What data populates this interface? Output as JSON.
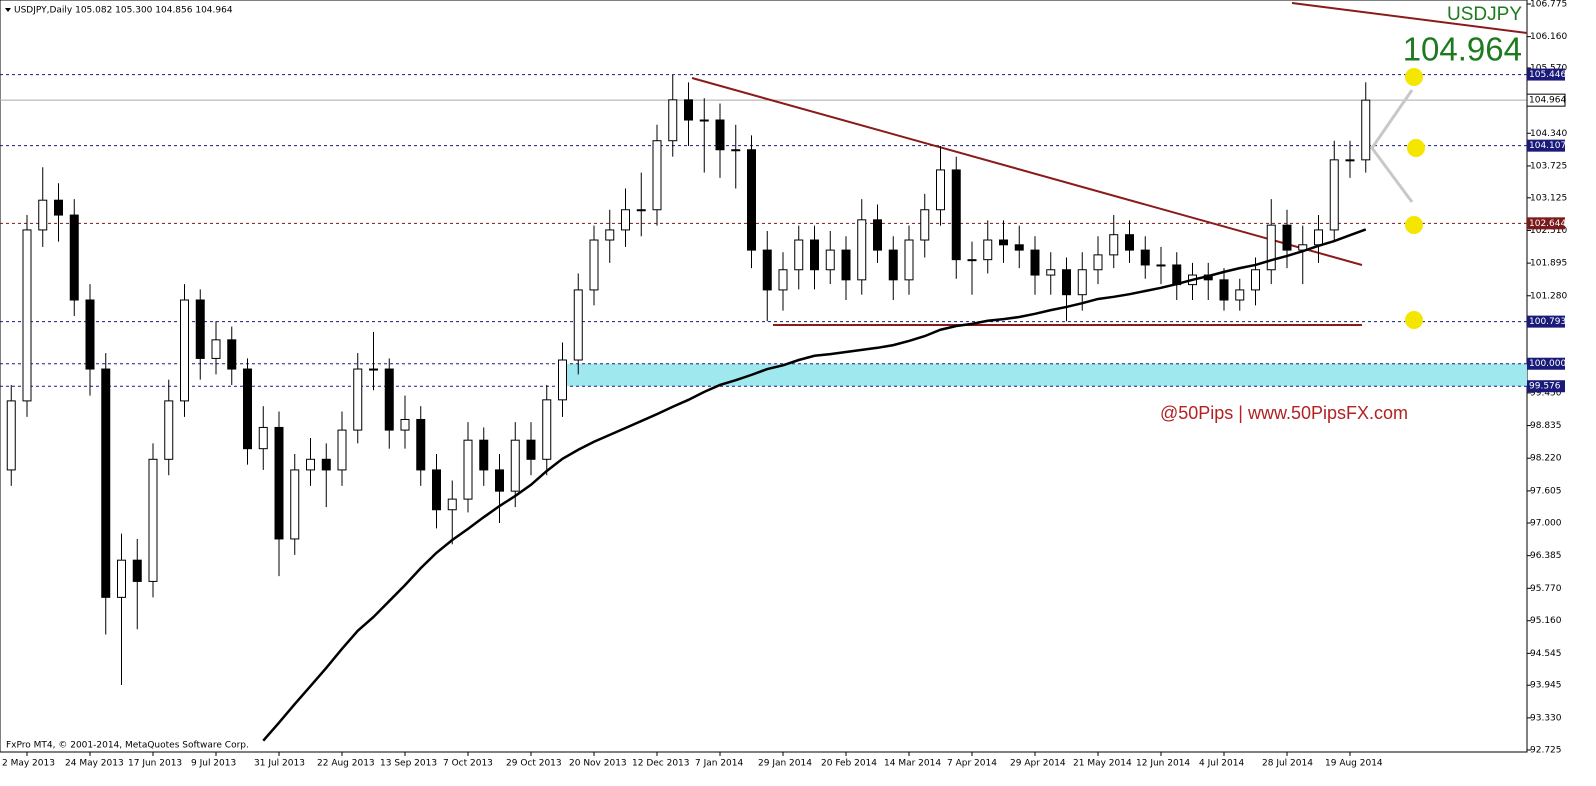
{
  "chart_data": {
    "type": "candlestick",
    "title": "USDJPY,Daily  105.082 105.300 104.856 104.964",
    "symbol": "USDJPY",
    "last_price": {
      "value": 104.964,
      "label": "104.964"
    },
    "watermark": "@50Pips | www.50PipsFX.com",
    "copyright": "FxPro MT4, © 2001-2014, MetaQuotes Software Corp.",
    "categories": [
      null,
      "2 May 2013",
      null,
      null,
      null,
      "24 May 2013",
      null,
      null,
      null,
      "17 Jun 2013",
      null,
      null,
      null,
      "9 Jul 2013",
      null,
      null,
      null,
      "31 Jul 2013",
      null,
      null,
      null,
      "22 Aug 2013",
      null,
      null,
      null,
      "13 Sep 2013",
      null,
      null,
      null,
      "7 Oct 2013",
      null,
      null,
      null,
      "29 Oct 2013",
      null,
      null,
      null,
      "20 Nov 2013",
      null,
      null,
      null,
      "12 Dec 2013",
      null,
      null,
      null,
      "7 Jan 2014",
      null,
      null,
      null,
      "29 Jan 2014",
      null,
      null,
      null,
      "20 Feb 2014",
      null,
      null,
      null,
      "14 Mar 2014",
      null,
      null,
      null,
      "7 Apr 2014",
      null,
      null,
      null,
      "29 Apr 2014",
      null,
      null,
      null,
      "21 May 2014",
      null,
      null,
      null,
      "12 Jun 2014",
      null,
      null,
      null,
      "4 Jul 2014",
      null,
      null,
      null,
      "28 Jul 2014",
      null,
      null,
      null,
      "19 Aug 2014",
      null
    ],
    "open": [
      98.0,
      99.3,
      102.52,
      103.08,
      102.8,
      101.2,
      99.9,
      95.6,
      96.3,
      95.9,
      98.2,
      99.3,
      101.2,
      100.1,
      100.45,
      99.9,
      98.4,
      98.8,
      96.7,
      98.0,
      98.2,
      98.0,
      98.75,
      99.9,
      99.9,
      98.75,
      98.95,
      98.0,
      97.25,
      97.45,
      98.56,
      98.0,
      97.6,
      98.56,
      98.2,
      99.32,
      100.07,
      101.39,
      102.33,
      102.52,
      102.9,
      102.9,
      104.2,
      104.97,
      104.59,
      104.59,
      104.03,
      104.03,
      102.14,
      101.39,
      101.77,
      102.33,
      101.77,
      102.14,
      101.58,
      102.71,
      102.14,
      101.58,
      102.33,
      102.9,
      103.65,
      101.96,
      101.96,
      102.33,
      102.24,
      102.14,
      101.67,
      101.77,
      101.3,
      101.77,
      102.05,
      102.43,
      102.14,
      101.86,
      101.86,
      101.49,
      101.67,
      101.58,
      101.2,
      101.39,
      101.77,
      102.61,
      102.14,
      102.24,
      102.52,
      103.84,
      103.84
    ],
    "high": [
      99.6,
      102.8,
      103.7,
      103.4,
      103.1,
      101.5,
      100.2,
      96.8,
      96.7,
      98.5,
      99.7,
      101.5,
      101.4,
      100.8,
      100.7,
      100.1,
      99.2,
      99.1,
      98.3,
      98.6,
      98.5,
      99.1,
      100.2,
      100.6,
      100.1,
      99.4,
      99.2,
      98.3,
      97.8,
      98.9,
      98.8,
      98.3,
      98.9,
      98.9,
      99.6,
      100.4,
      101.7,
      102.6,
      102.9,
      103.3,
      103.6,
      104.5,
      105.44,
      105.3,
      105.0,
      104.9,
      104.5,
      104.3,
      102.5,
      102.1,
      102.6,
      102.6,
      102.5,
      102.4,
      103.1,
      103.0,
      102.4,
      102.6,
      103.2,
      104.1,
      103.9,
      102.3,
      102.7,
      102.7,
      102.6,
      102.4,
      102.1,
      102.0,
      102.1,
      102.4,
      102.8,
      102.7,
      102.4,
      102.2,
      102.1,
      101.9,
      101.9,
      101.8,
      101.6,
      102.0,
      103.1,
      102.9,
      102.6,
      102.8,
      104.2,
      104.2,
      105.3
    ],
    "low": [
      97.7,
      99.0,
      102.2,
      102.3,
      100.9,
      99.4,
      94.9,
      93.95,
      95.0,
      95.6,
      97.9,
      99.0,
      99.7,
      99.8,
      99.6,
      98.1,
      98.0,
      96.0,
      96.4,
      97.7,
      97.3,
      97.7,
      98.5,
      99.5,
      98.4,
      98.4,
      97.7,
      96.9,
      96.6,
      97.2,
      97.7,
      97.0,
      97.3,
      97.9,
      97.9,
      99.0,
      99.8,
      101.1,
      101.9,
      102.2,
      102.4,
      102.6,
      103.9,
      104.1,
      103.6,
      103.5,
      103.3,
      101.8,
      100.8,
      101.0,
      101.4,
      101.4,
      101.5,
      101.2,
      101.3,
      101.9,
      101.2,
      101.3,
      102.0,
      102.6,
      101.6,
      101.3,
      101.7,
      101.9,
      101.8,
      101.3,
      101.3,
      100.8,
      101.0,
      101.5,
      101.8,
      101.9,
      101.6,
      101.5,
      101.2,
      101.2,
      101.2,
      101.0,
      101.0,
      101.1,
      101.5,
      101.8,
      101.5,
      101.9,
      102.3,
      103.5,
      103.6
    ],
    "close": [
      99.3,
      102.52,
      103.08,
      102.8,
      101.2,
      99.9,
      95.6,
      96.3,
      95.9,
      98.2,
      99.3,
      101.2,
      100.1,
      100.45,
      99.9,
      98.4,
      98.8,
      96.7,
      98.0,
      98.2,
      98.0,
      98.75,
      99.9,
      99.9,
      98.75,
      98.95,
      98.0,
      97.25,
      97.45,
      98.56,
      98.0,
      97.6,
      98.56,
      98.2,
      99.32,
      100.07,
      101.39,
      102.33,
      102.52,
      102.9,
      102.9,
      104.2,
      104.97,
      104.59,
      104.59,
      104.03,
      104.03,
      102.14,
      101.39,
      101.77,
      102.33,
      101.77,
      102.14,
      101.58,
      102.71,
      102.14,
      101.58,
      102.33,
      102.9,
      103.65,
      101.96,
      101.96,
      102.33,
      102.24,
      102.14,
      101.67,
      101.77,
      101.3,
      101.77,
      102.05,
      102.43,
      102.14,
      101.86,
      101.86,
      101.49,
      101.67,
      101.58,
      101.2,
      101.39,
      101.77,
      102.61,
      102.14,
      102.24,
      102.52,
      103.84,
      103.84,
      104.964
    ],
    "ma": {
      "color": "#000000",
      "values": [
        null,
        null,
        null,
        null,
        null,
        null,
        null,
        null,
        null,
        null,
        null,
        null,
        null,
        null,
        null,
        null,
        92.9,
        93.24,
        93.59,
        93.93,
        94.27,
        94.63,
        94.97,
        95.23,
        95.53,
        95.83,
        96.15,
        96.44,
        96.68,
        96.89,
        97.11,
        97.32,
        97.51,
        97.72,
        97.98,
        98.21,
        98.38,
        98.53,
        98.66,
        98.79,
        98.92,
        99.05,
        99.19,
        99.32,
        99.47,
        99.6,
        99.69,
        99.79,
        99.9,
        99.97,
        100.07,
        100.15,
        100.18,
        100.22,
        100.26,
        100.3,
        100.35,
        100.43,
        100.52,
        100.64,
        100.71,
        100.75,
        100.81,
        100.84,
        100.88,
        100.94,
        101.01,
        101.07,
        101.14,
        101.22,
        101.26,
        101.31,
        101.37,
        101.43,
        101.5,
        101.58,
        101.65,
        101.73,
        101.8,
        101.86,
        101.95,
        102.03,
        102.12,
        102.22,
        102.31,
        102.42,
        102.53
      ]
    },
    "levels": [
      {
        "value": 105.446,
        "label": "105.446",
        "color": "#1a1a7a"
      },
      {
        "value": 104.107,
        "label": "104.107",
        "color": "#1a1a7a"
      },
      {
        "value": 102.644,
        "label": "102.644",
        "color": "#7a1a1a"
      },
      {
        "value": 100.793,
        "label": "100.793",
        "color": "#1a1a7a"
      },
      {
        "value": 100,
        "label": "100.000",
        "color": "#1a1a7a"
      },
      {
        "value": 99.576,
        "label": "99.576",
        "color": "#1a1a7a"
      }
    ],
    "zone_color": "#9ee8ee",
    "ylim": [
      92.725,
      106.775
    ],
    "yticks": [
      106.775,
      {
        "value": 106.16,
        "label": "106.160"
      },
      {
        "value": 105.57,
        "label": "105.570"
      },
      {
        "value": 104.34,
        "label": "104.340"
      },
      103.725,
      103.125,
      {
        "value": 102.51,
        "label": "102.510"
      },
      101.895,
      {
        "value": 101.28,
        "label": "101.280"
      },
      {
        "value": 99.45,
        "label": "99.450"
      },
      98.835,
      {
        "value": 98.22,
        "label": "98.220"
      },
      97.605,
      {
        "value": 97,
        "label": "97.000"
      },
      96.385,
      {
        "value": 95.77,
        "label": "95.770"
      },
      {
        "value": 95.16,
        "label": "95.160"
      },
      94.545,
      93.945,
      {
        "value": 93.33,
        "label": "93.330"
      },
      92.725
    ]
  }
}
